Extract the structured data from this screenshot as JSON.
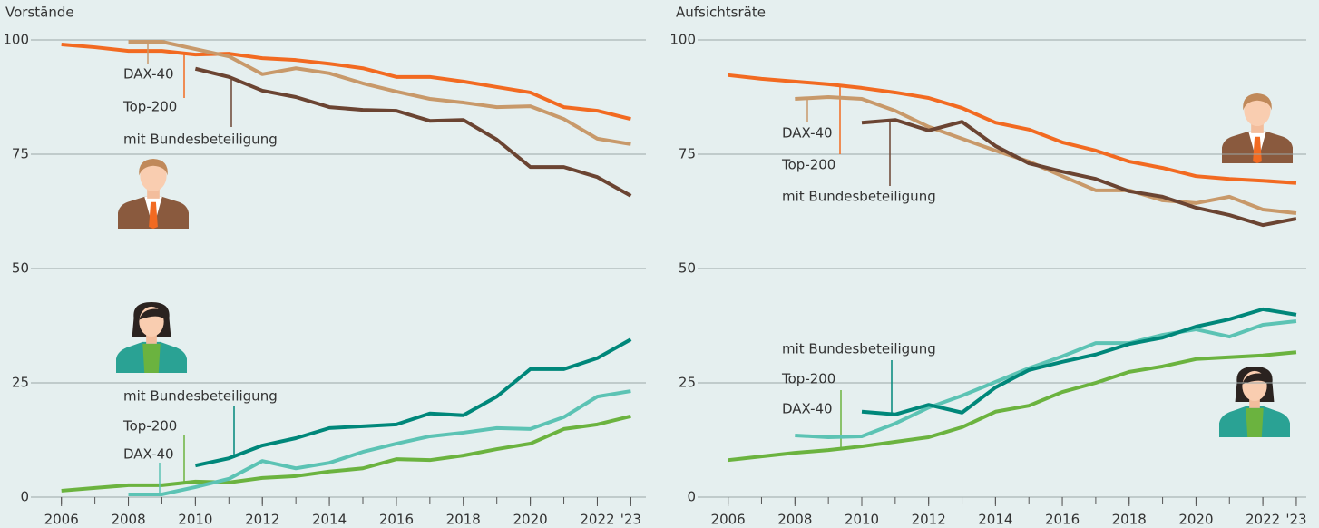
{
  "chart_data": [
    {
      "type": "line",
      "title": "Vorstände",
      "x": [
        2006,
        2007,
        2008,
        2009,
        2010,
        2011,
        2012,
        2013,
        2014,
        2015,
        2016,
        2017,
        2018,
        2019,
        2020,
        2021,
        2022,
        2023
      ],
      "xlim": [
        2005.25,
        2023.45
      ],
      "ylim": [
        0,
        100
      ],
      "xticks": [
        2006,
        2008,
        2010,
        2012,
        2014,
        2016,
        2018,
        2020,
        2022,
        {
          "value": 2023,
          "label": "'23"
        }
      ],
      "yticks": [
        0,
        25,
        50,
        75,
        100
      ],
      "grid": true,
      "series": [
        {
          "name": "Top-200",
          "color": "#f26a21",
          "values": [
            99,
            98.4,
            97.6,
            97.6,
            96.8,
            97,
            96,
            95.6,
            94.8,
            93.8,
            91.9,
            91.9,
            90.9,
            89.7,
            88.5,
            85.3,
            84.5,
            82.7
          ]
        },
        {
          "name": "DAX-40",
          "color": "#c8996a",
          "values": [
            null,
            null,
            99.6,
            99.6,
            98,
            96.4,
            92.5,
            93.8,
            92.7,
            90.5,
            88.7,
            87.1,
            86.3,
            85.3,
            85.5,
            82.7,
            78.4,
            77.2
          ]
        },
        {
          "name": "mit Bundesbeteiligung",
          "color": "#6b4432",
          "values": [
            null,
            null,
            null,
            null,
            93.7,
            91.9,
            88.9,
            87.5,
            85.3,
            84.7,
            84.5,
            82.3,
            82.5,
            78.2,
            72.2,
            72.2,
            70,
            65.9
          ]
        },
        {
          "name": "Top-200",
          "color": "#6bb33f",
          "values": [
            1.4,
            2,
            2.6,
            2.6,
            3.4,
            3.2,
            4.2,
            4.6,
            5.6,
            6.3,
            8.3,
            8.1,
            9.1,
            10.5,
            11.7,
            14.9,
            15.9,
            17.7
          ]
        },
        {
          "name": "DAX-40",
          "color": "#5cc3b4",
          "values": [
            null,
            null,
            0.6,
            0.6,
            2.2,
            4,
            7.9,
            6.3,
            7.5,
            9.9,
            11.7,
            13.3,
            14.1,
            15.1,
            14.9,
            17.5,
            22,
            23.2
          ]
        },
        {
          "name": "mit Bundesbeteiligung",
          "color": "#00877a",
          "values": [
            null,
            null,
            null,
            null,
            6.9,
            8.5,
            11.3,
            12.9,
            15.1,
            15.5,
            15.9,
            18.3,
            17.9,
            22,
            28,
            28,
            30.4,
            34.5
          ]
        }
      ]
    },
    {
      "type": "line",
      "title": "Aufsichtsräte",
      "x": [
        2006,
        2007,
        2008,
        2009,
        2010,
        2011,
        2012,
        2013,
        2014,
        2015,
        2016,
        2017,
        2018,
        2019,
        2020,
        2021,
        2022,
        2023
      ],
      "xlim": [
        2005.25,
        2023.3
      ],
      "ylim": [
        0,
        100
      ],
      "xticks": [
        2006,
        2008,
        2010,
        2012,
        2014,
        2016,
        2018,
        2020,
        2022,
        {
          "value": 2023,
          "label": "'23"
        }
      ],
      "yticks": [
        0,
        25,
        50,
        75,
        100
      ],
      "grid": true,
      "series": [
        {
          "name": "Top-200",
          "color": "#f26a21",
          "values": [
            92.3,
            91.5,
            90.9,
            90.3,
            89.5,
            88.5,
            87.3,
            85.1,
            81.9,
            80.4,
            77.6,
            75.8,
            73.4,
            72,
            70.2,
            69.6,
            69.2,
            68.7
          ]
        },
        {
          "name": "DAX-40",
          "color": "#c8996a",
          "values": [
            null,
            null,
            87.1,
            87.5,
            87.1,
            84.5,
            81,
            78.4,
            75.8,
            73.4,
            70.2,
            67.1,
            67.1,
            64.9,
            64.3,
            65.7,
            62.9,
            62.1
          ]
        },
        {
          "name": "mit Bundesbeteiligung",
          "color": "#6b4432",
          "values": [
            null,
            null,
            null,
            null,
            81.9,
            82.5,
            80.2,
            82.1,
            76.8,
            73,
            71.2,
            69.6,
            66.9,
            65.7,
            63.3,
            61.7,
            59.5,
            60.9
          ]
        },
        {
          "name": "Top-200",
          "color": "#6bb33f",
          "values": [
            8.1,
            8.9,
            9.7,
            10.3,
            11.1,
            12.1,
            13.1,
            15.3,
            18.7,
            20,
            23,
            25,
            27.4,
            28.6,
            30.2,
            30.6,
            31,
            31.7
          ]
        },
        {
          "name": "DAX-40",
          "color": "#5cc3b4",
          "values": [
            null,
            null,
            13.5,
            13.1,
            13.3,
            16.1,
            19.6,
            22.2,
            25.2,
            28.2,
            30.8,
            33.7,
            33.7,
            35.5,
            36.7,
            35.1,
            37.7,
            38.5
          ]
        },
        {
          "name": "mit Bundesbeteiligung",
          "color": "#00877a",
          "values": [
            null,
            null,
            null,
            null,
            18.7,
            18.1,
            20.2,
            18.5,
            24,
            27.8,
            29.6,
            31.2,
            33.5,
            34.9,
            37.3,
            38.9,
            41.1,
            39.9
          ]
        }
      ]
    }
  ]
}
